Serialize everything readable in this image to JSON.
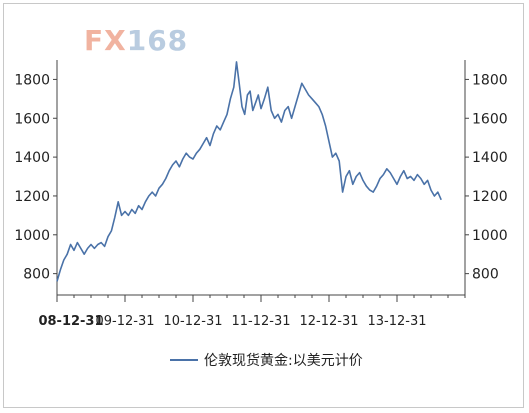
{
  "logo": {
    "prefix": "FX",
    "suffix": "168"
  },
  "chart_data": {
    "type": "line",
    "title": "",
    "xlabel": "",
    "ylabel": "",
    "x_tick_labels": [
      "08-12-31",
      "09-12-31",
      "10-12-31",
      "11-12-31",
      "12-12-31",
      "13-12-31"
    ],
    "y_ticks": [
      800,
      1000,
      1200,
      1400,
      1600,
      1800
    ],
    "ylim": [
      690,
      1900
    ],
    "xlim": [
      0,
      6.0
    ],
    "grid": false,
    "legend_placement": "bottom",
    "series": [
      {
        "name": "伦敦现货黄金:以美元计价",
        "color": "#4a72a8",
        "points": [
          [
            0.0,
            760
          ],
          [
            0.05,
            820
          ],
          [
            0.1,
            870
          ],
          [
            0.15,
            900
          ],
          [
            0.2,
            950
          ],
          [
            0.25,
            920
          ],
          [
            0.3,
            960
          ],
          [
            0.35,
            930
          ],
          [
            0.4,
            900
          ],
          [
            0.45,
            930
          ],
          [
            0.5,
            950
          ],
          [
            0.55,
            930
          ],
          [
            0.6,
            950
          ],
          [
            0.65,
            960
          ],
          [
            0.7,
            940
          ],
          [
            0.75,
            990
          ],
          [
            0.8,
            1020
          ],
          [
            0.85,
            1090
          ],
          [
            0.9,
            1170
          ],
          [
            0.95,
            1100
          ],
          [
            1.0,
            1120
          ],
          [
            1.05,
            1100
          ],
          [
            1.1,
            1130
          ],
          [
            1.15,
            1110
          ],
          [
            1.2,
            1150
          ],
          [
            1.25,
            1130
          ],
          [
            1.3,
            1170
          ],
          [
            1.35,
            1200
          ],
          [
            1.4,
            1220
          ],
          [
            1.45,
            1200
          ],
          [
            1.5,
            1240
          ],
          [
            1.55,
            1260
          ],
          [
            1.6,
            1290
          ],
          [
            1.65,
            1330
          ],
          [
            1.7,
            1360
          ],
          [
            1.75,
            1380
          ],
          [
            1.8,
            1350
          ],
          [
            1.85,
            1390
          ],
          [
            1.9,
            1420
          ],
          [
            1.95,
            1400
          ],
          [
            2.0,
            1390
          ],
          [
            2.05,
            1420
          ],
          [
            2.1,
            1440
          ],
          [
            2.15,
            1470
          ],
          [
            2.2,
            1500
          ],
          [
            2.25,
            1460
          ],
          [
            2.3,
            1520
          ],
          [
            2.35,
            1560
          ],
          [
            2.4,
            1540
          ],
          [
            2.45,
            1580
          ],
          [
            2.5,
            1620
          ],
          [
            2.55,
            1700
          ],
          [
            2.6,
            1760
          ],
          [
            2.64,
            1890
          ],
          [
            2.68,
            1780
          ],
          [
            2.72,
            1660
          ],
          [
            2.76,
            1620
          ],
          [
            2.8,
            1720
          ],
          [
            2.84,
            1740
          ],
          [
            2.88,
            1640
          ],
          [
            2.92,
            1680
          ],
          [
            2.96,
            1720
          ],
          [
            3.0,
            1650
          ],
          [
            3.05,
            1700
          ],
          [
            3.1,
            1760
          ],
          [
            3.15,
            1640
          ],
          [
            3.2,
            1600
          ],
          [
            3.25,
            1620
          ],
          [
            3.3,
            1580
          ],
          [
            3.35,
            1640
          ],
          [
            3.4,
            1660
          ],
          [
            3.45,
            1600
          ],
          [
            3.5,
            1660
          ],
          [
            3.55,
            1720
          ],
          [
            3.6,
            1780
          ],
          [
            3.65,
            1750
          ],
          [
            3.7,
            1720
          ],
          [
            3.75,
            1700
          ],
          [
            3.8,
            1680
          ],
          [
            3.85,
            1660
          ],
          [
            3.9,
            1620
          ],
          [
            3.95,
            1560
          ],
          [
            4.0,
            1480
          ],
          [
            4.05,
            1400
          ],
          [
            4.1,
            1420
          ],
          [
            4.15,
            1380
          ],
          [
            4.2,
            1220
          ],
          [
            4.25,
            1300
          ],
          [
            4.3,
            1330
          ],
          [
            4.35,
            1260
          ],
          [
            4.4,
            1300
          ],
          [
            4.45,
            1320
          ],
          [
            4.5,
            1280
          ],
          [
            4.55,
            1250
          ],
          [
            4.6,
            1230
          ],
          [
            4.65,
            1220
          ],
          [
            4.7,
            1250
          ],
          [
            4.75,
            1290
          ],
          [
            4.8,
            1310
          ],
          [
            4.85,
            1340
          ],
          [
            4.9,
            1320
          ],
          [
            4.95,
            1290
          ],
          [
            5.0,
            1260
          ],
          [
            5.05,
            1300
          ],
          [
            5.1,
            1330
          ],
          [
            5.15,
            1290
          ],
          [
            5.2,
            1300
          ],
          [
            5.25,
            1280
          ],
          [
            5.3,
            1310
          ],
          [
            5.35,
            1290
          ],
          [
            5.4,
            1260
          ],
          [
            5.45,
            1280
          ],
          [
            5.5,
            1230
          ],
          [
            5.55,
            1200
          ],
          [
            5.6,
            1220
          ],
          [
            5.65,
            1180
          ]
        ]
      }
    ]
  }
}
